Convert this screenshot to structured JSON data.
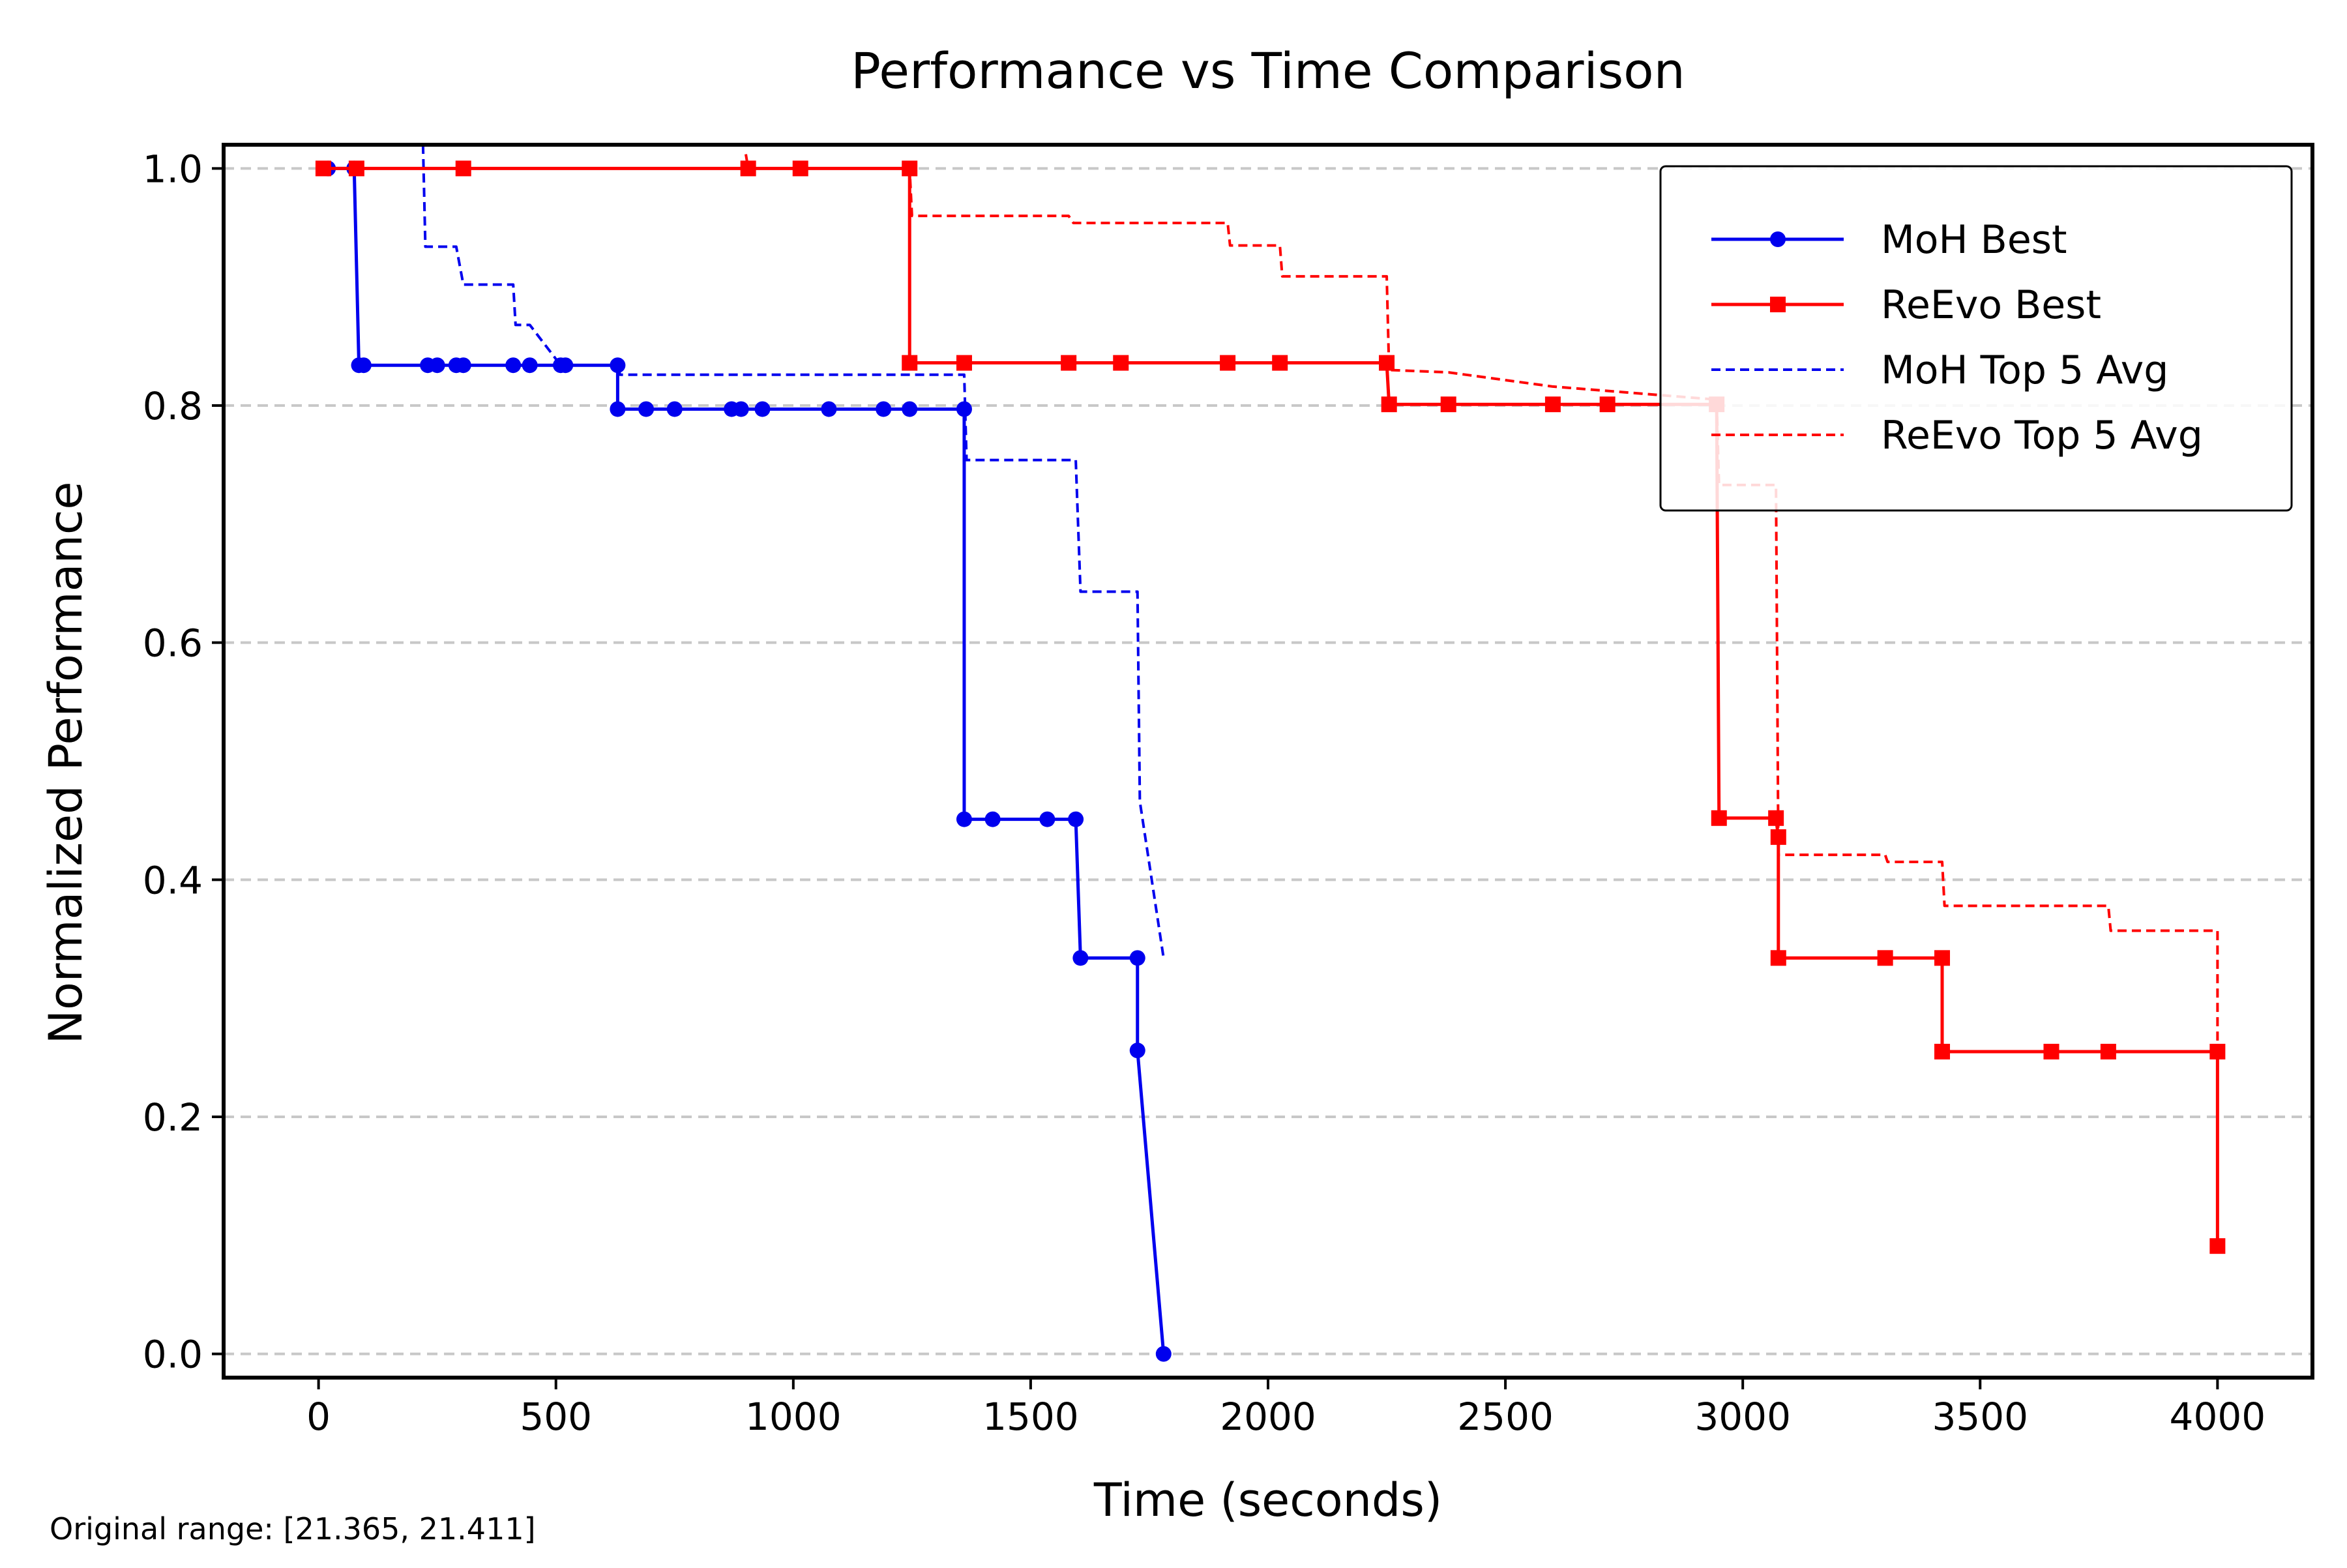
{
  "chart_data": {
    "type": "line",
    "title": "Performance vs Time Comparison",
    "xlabel": "Time (seconds)",
    "ylabel": "Normalized Performance",
    "xlim": [
      -200,
      4200
    ],
    "ylim": [
      -0.02,
      1.02
    ],
    "xticks": [
      0,
      500,
      1000,
      1500,
      2000,
      2500,
      3000,
      3500,
      4000
    ],
    "yticks": [
      0.0,
      0.2,
      0.4,
      0.6,
      0.8,
      1.0
    ],
    "ytick_labels": [
      "0.0",
      "0.2",
      "0.4",
      "0.6",
      "0.8",
      "1.0"
    ],
    "grid": "y-dashed",
    "legend_position": "upper right",
    "series": [
      {
        "name": "MoH Best",
        "color": "#0000ee",
        "style": "solid",
        "marker": "circle",
        "points": [
          [
            20,
            1.0
          ],
          [
            75,
            1.0
          ],
          [
            85,
            0.834
          ],
          [
            95,
            0.834
          ],
          [
            230,
            0.834
          ],
          [
            250,
            0.834
          ],
          [
            290,
            0.834
          ],
          [
            305,
            0.834
          ],
          [
            410,
            0.834
          ],
          [
            445,
            0.834
          ],
          [
            510,
            0.834
          ],
          [
            520,
            0.834
          ],
          [
            630,
            0.834
          ],
          [
            630,
            0.797
          ],
          [
            690,
            0.797
          ],
          [
            750,
            0.797
          ],
          [
            870,
            0.797
          ],
          [
            890,
            0.797
          ],
          [
            935,
            0.797
          ],
          [
            1075,
            0.797
          ],
          [
            1190,
            0.797
          ],
          [
            1245,
            0.797
          ],
          [
            1360,
            0.797
          ],
          [
            1360,
            0.451
          ],
          [
            1420,
            0.451
          ],
          [
            1535,
            0.451
          ],
          [
            1595,
            0.451
          ],
          [
            1605,
            0.334
          ],
          [
            1725,
            0.334
          ],
          [
            1725,
            0.256
          ],
          [
            1780,
            0.0
          ]
        ]
      },
      {
        "name": "ReEvo Best",
        "color": "#ff0000",
        "style": "solid",
        "marker": "square",
        "points": [
          [
            10,
            1.0
          ],
          [
            80,
            1.0
          ],
          [
            305,
            1.0
          ],
          [
            905,
            1.0
          ],
          [
            1015,
            1.0
          ],
          [
            1245,
            1.0
          ],
          [
            1245,
            0.836
          ],
          [
            1360,
            0.836
          ],
          [
            1580,
            0.836
          ],
          [
            1690,
            0.836
          ],
          [
            1915,
            0.836
          ],
          [
            2025,
            0.836
          ],
          [
            2250,
            0.836
          ],
          [
            2255,
            0.801
          ],
          [
            2380,
            0.801
          ],
          [
            2600,
            0.801
          ],
          [
            2715,
            0.801
          ],
          [
            2945,
            0.801
          ],
          [
            2950,
            0.452
          ],
          [
            3070,
            0.452
          ],
          [
            3075,
            0.436
          ],
          [
            3075,
            0.334
          ],
          [
            3300,
            0.334
          ],
          [
            3420,
            0.334
          ],
          [
            3420,
            0.255
          ],
          [
            3650,
            0.255
          ],
          [
            3770,
            0.255
          ],
          [
            4000,
            0.255
          ],
          [
            4000,
            0.091
          ]
        ]
      },
      {
        "name": "MoH Top 5 Avg",
        "color": "#0000ee",
        "style": "dashed",
        "marker": "none",
        "points": [
          [
            220,
            1.02
          ],
          [
            225,
            0.934
          ],
          [
            290,
            0.934
          ],
          [
            305,
            0.902
          ],
          [
            410,
            0.902
          ],
          [
            415,
            0.868
          ],
          [
            445,
            0.868
          ],
          [
            510,
            0.834
          ],
          [
            630,
            0.834
          ],
          [
            635,
            0.826
          ],
          [
            1360,
            0.826
          ],
          [
            1365,
            0.754
          ],
          [
            1595,
            0.754
          ],
          [
            1605,
            0.643
          ],
          [
            1725,
            0.643
          ],
          [
            1730,
            0.466
          ],
          [
            1780,
            0.334
          ]
        ]
      },
      {
        "name": "ReEvo Top 5 Avg",
        "color": "#ff0000",
        "style": "dashed",
        "marker": "none",
        "points": [
          [
            900,
            1.012
          ],
          [
            905,
            1.0
          ],
          [
            1245,
            1.0
          ],
          [
            1250,
            0.96
          ],
          [
            1580,
            0.96
          ],
          [
            1590,
            0.954
          ],
          [
            1915,
            0.954
          ],
          [
            1920,
            0.935
          ],
          [
            2025,
            0.935
          ],
          [
            2030,
            0.909
          ],
          [
            2250,
            0.909
          ],
          [
            2255,
            0.83
          ],
          [
            2380,
            0.828
          ],
          [
            2600,
            0.816
          ],
          [
            2945,
            0.805
          ],
          [
            2950,
            0.733
          ],
          [
            3070,
            0.733
          ],
          [
            3075,
            0.421
          ],
          [
            3300,
            0.421
          ],
          [
            3305,
            0.415
          ],
          [
            3420,
            0.415
          ],
          [
            3425,
            0.378
          ],
          [
            3770,
            0.378
          ],
          [
            3775,
            0.357
          ],
          [
            4000,
            0.357
          ],
          [
            4000,
            0.26
          ]
        ]
      }
    ],
    "footnote": "Original range: [21.365, 21.411]"
  }
}
